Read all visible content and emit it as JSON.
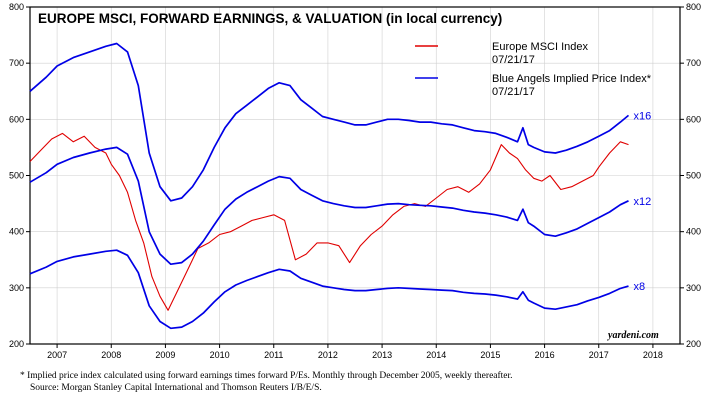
{
  "chart_data": {
    "type": "line",
    "title": "EUROPE MSCI, FORWARD EARNINGS, & VALUATION (in local currency)",
    "xlabel": "",
    "ylabel": "",
    "x_ticks": [
      "2007",
      "2008",
      "2009",
      "2010",
      "2011",
      "2012",
      "2013",
      "2014",
      "2015",
      "2016",
      "2017",
      "2018"
    ],
    "xlim": [
      2006.5,
      2018.5
    ],
    "y_ticks": [
      200,
      300,
      400,
      500,
      600,
      700,
      800
    ],
    "ylim": [
      200,
      800
    ],
    "legend_position": "top-right",
    "legend": [
      {
        "name": "Europe MSCI Index",
        "date": "07/21/17",
        "color": "#e00000"
      },
      {
        "name": "Blue Angels Implied Price Index*",
        "date": "07/21/17",
        "color": "#0000e6"
      }
    ],
    "series": [
      {
        "name": "Europe MSCI Index",
        "color": "#e00000",
        "x": [
          2006.5,
          2006.7,
          2006.9,
          2007.1,
          2007.3,
          2007.5,
          2007.7,
          2007.9,
          2008.0,
          2008.15,
          2008.3,
          2008.45,
          2008.6,
          2008.75,
          2008.9,
          2009.05,
          2009.2,
          2009.4,
          2009.6,
          2009.8,
          2010.0,
          2010.2,
          2010.4,
          2010.6,
          2010.8,
          2011.0,
          2011.2,
          2011.4,
          2011.6,
          2011.8,
          2012.0,
          2012.2,
          2012.4,
          2012.6,
          2012.8,
          2013.0,
          2013.2,
          2013.4,
          2013.6,
          2013.8,
          2014.0,
          2014.2,
          2014.4,
          2014.6,
          2014.8,
          2015.0,
          2015.2,
          2015.35,
          2015.5,
          2015.65,
          2015.8,
          2015.95,
          2016.1,
          2016.3,
          2016.5,
          2016.7,
          2016.9,
          2017.0,
          2017.2,
          2017.4,
          2017.55
        ],
        "values": [
          525,
          545,
          565,
          575,
          560,
          570,
          550,
          540,
          520,
          500,
          470,
          420,
          380,
          320,
          285,
          260,
          290,
          330,
          370,
          380,
          395,
          400,
          410,
          420,
          425,
          430,
          420,
          350,
          360,
          380,
          380,
          375,
          345,
          375,
          395,
          410,
          430,
          445,
          450,
          445,
          460,
          475,
          480,
          470,
          485,
          510,
          555,
          540,
          530,
          510,
          495,
          490,
          500,
          475,
          480,
          490,
          500,
          515,
          540,
          560,
          555
        ]
      },
      {
        "name": "Implied x16",
        "color": "#0000e6",
        "label": "x16",
        "x": [
          2006.5,
          2006.8,
          2007.0,
          2007.3,
          2007.6,
          2007.9,
          2008.1,
          2008.3,
          2008.5,
          2008.7,
          2008.9,
          2009.1,
          2009.3,
          2009.5,
          2009.7,
          2009.9,
          2010.1,
          2010.3,
          2010.5,
          2010.7,
          2010.9,
          2011.1,
          2011.3,
          2011.5,
          2011.7,
          2011.9,
          2012.1,
          2012.3,
          2012.5,
          2012.7,
          2012.9,
          2013.1,
          2013.3,
          2013.5,
          2013.7,
          2013.9,
          2014.1,
          2014.3,
          2014.5,
          2014.7,
          2014.9,
          2015.1,
          2015.3,
          2015.5,
          2015.6,
          2015.7,
          2015.8,
          2016.0,
          2016.2,
          2016.4,
          2016.6,
          2016.8,
          2017.0,
          2017.2,
          2017.4,
          2017.55
        ],
        "values": [
          650,
          675,
          695,
          710,
          720,
          730,
          735,
          720,
          660,
          540,
          480,
          455,
          460,
          480,
          510,
          550,
          585,
          610,
          625,
          640,
          655,
          665,
          660,
          635,
          620,
          605,
          600,
          595,
          590,
          590,
          595,
          600,
          600,
          598,
          595,
          595,
          592,
          590,
          585,
          580,
          578,
          575,
          568,
          560,
          585,
          555,
          550,
          542,
          540,
          545,
          552,
          560,
          570,
          580,
          595,
          607
        ]
      },
      {
        "name": "Implied x12",
        "color": "#0000e6",
        "label": "x12",
        "x": [
          2006.5,
          2006.8,
          2007.0,
          2007.3,
          2007.6,
          2007.9,
          2008.1,
          2008.3,
          2008.5,
          2008.7,
          2008.9,
          2009.1,
          2009.3,
          2009.5,
          2009.7,
          2009.9,
          2010.1,
          2010.3,
          2010.5,
          2010.7,
          2010.9,
          2011.1,
          2011.3,
          2011.5,
          2011.7,
          2011.9,
          2012.1,
          2012.3,
          2012.5,
          2012.7,
          2012.9,
          2013.1,
          2013.3,
          2013.5,
          2013.7,
          2013.9,
          2014.1,
          2014.3,
          2014.5,
          2014.7,
          2014.9,
          2015.1,
          2015.3,
          2015.5,
          2015.6,
          2015.7,
          2015.8,
          2016.0,
          2016.2,
          2016.4,
          2016.6,
          2016.8,
          2017.0,
          2017.2,
          2017.4,
          2017.55
        ],
        "values": [
          488,
          505,
          520,
          532,
          540,
          547,
          550,
          538,
          490,
          400,
          360,
          342,
          345,
          360,
          383,
          412,
          440,
          458,
          470,
          480,
          490,
          498,
          495,
          475,
          465,
          455,
          450,
          446,
          443,
          443,
          446,
          449,
          450,
          448,
          447,
          446,
          444,
          442,
          438,
          435,
          433,
          430,
          426,
          420,
          440,
          416,
          410,
          395,
          392,
          398,
          405,
          415,
          425,
          435,
          448,
          455
        ]
      },
      {
        "name": "Implied x8",
        "color": "#0000e6",
        "label": "x8",
        "x": [
          2006.5,
          2006.8,
          2007.0,
          2007.3,
          2007.6,
          2007.9,
          2008.1,
          2008.3,
          2008.5,
          2008.7,
          2008.9,
          2009.1,
          2009.3,
          2009.5,
          2009.7,
          2009.9,
          2010.1,
          2010.3,
          2010.5,
          2010.7,
          2010.9,
          2011.1,
          2011.3,
          2011.5,
          2011.7,
          2011.9,
          2012.1,
          2012.3,
          2012.5,
          2012.7,
          2012.9,
          2013.1,
          2013.3,
          2013.5,
          2013.7,
          2013.9,
          2014.1,
          2014.3,
          2014.5,
          2014.7,
          2014.9,
          2015.1,
          2015.3,
          2015.5,
          2015.6,
          2015.7,
          2015.8,
          2016.0,
          2016.2,
          2016.4,
          2016.6,
          2016.8,
          2017.0,
          2017.2,
          2017.4,
          2017.55
        ],
        "values": [
          325,
          337,
          347,
          355,
          360,
          365,
          367,
          358,
          327,
          268,
          240,
          228,
          230,
          240,
          255,
          275,
          293,
          305,
          313,
          320,
          327,
          333,
          330,
          317,
          310,
          303,
          300,
          297,
          295,
          295,
          297,
          299,
          300,
          299,
          298,
          297,
          296,
          295,
          292,
          290,
          289,
          287,
          284,
          280,
          293,
          278,
          273,
          264,
          262,
          266,
          270,
          277,
          283,
          290,
          299,
          303
        ]
      }
    ]
  },
  "credit": "yardeni.com",
  "footnote_line1": "*  Implied price index calculated using forward earnings times forward P/Es. Monthly through December 2005, weekly thereafter.",
  "footnote_line2": "Source: Morgan Stanley Capital International and Thomson Reuters I/B/E/S."
}
